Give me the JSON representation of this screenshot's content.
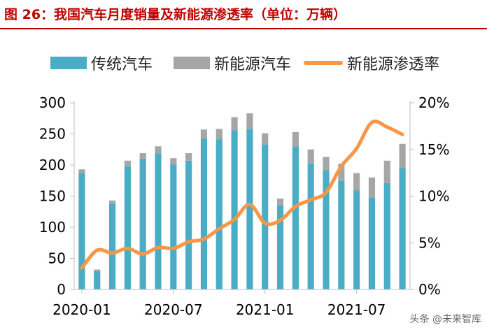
{
  "title": "图 26：我国汽车月度销量及新能源渗透率（单位：万辆）",
  "watermark": "头条 @未来智库",
  "colors": {
    "title": "#c00000",
    "conventional": "#4bacc6",
    "nev": "#a6a6a6",
    "penetration": "#f79646"
  },
  "chart_data": {
    "type": "bar",
    "title": "图 26：我国汽车月度销量及新能源渗透率（单位：万辆）",
    "stacked": true,
    "categories": [
      "2020-01",
      "2020-02",
      "2020-03",
      "2020-04",
      "2020-05",
      "2020-06",
      "2020-07",
      "2020-08",
      "2020-09",
      "2020-10",
      "2020-11",
      "2020-12",
      "2021-01",
      "2021-02",
      "2021-03",
      "2021-04",
      "2021-05",
      "2021-06",
      "2021-07",
      "2021-08",
      "2021-09",
      "2021-10"
    ],
    "x_tick_labels": [
      "2020-01",
      "2020-07",
      "2021-01",
      "2021-07"
    ],
    "x_tick_indices": [
      0,
      6,
      12,
      18
    ],
    "series": [
      {
        "name": "传统汽车",
        "axis": "left",
        "type": "bar",
        "values": [
          187,
          30,
          138,
          198,
          210,
          219,
          201,
          207,
          243,
          241,
          256,
          258,
          233,
          135,
          230,
          203,
          192,
          175,
          159,
          148,
          171,
          195
        ]
      },
      {
        "name": "新能源汽车",
        "axis": "left",
        "type": "bar",
        "values": [
          6,
          2,
          5,
          9,
          9,
          11,
          10,
          12,
          14,
          17,
          21,
          25,
          18,
          11,
          23,
          22,
          21,
          27,
          28,
          32,
          36,
          39
        ]
      },
      {
        "name": "新能源渗透率",
        "axis": "right",
        "type": "line",
        "values": [
          2.3,
          4.2,
          3.9,
          4.4,
          3.8,
          4.5,
          4.4,
          5.1,
          5.4,
          6.5,
          7.5,
          9.1,
          7.1,
          7.4,
          8.9,
          9.6,
          10.4,
          13.2,
          15.1,
          17.9,
          17.4,
          16.6
        ]
      }
    ],
    "y_left": {
      "ylim": [
        0,
        300
      ],
      "ticks": [
        0,
        50,
        100,
        150,
        200,
        250,
        300
      ]
    },
    "y_right": {
      "ylim": [
        0,
        20
      ],
      "ticks": [
        0,
        5,
        10,
        15,
        20
      ],
      "tick_labels": [
        "0%",
        "5%",
        "10%",
        "15%",
        "20%"
      ]
    },
    "legend": [
      "传统汽车",
      "新能源汽车",
      "新能源渗透率"
    ]
  }
}
